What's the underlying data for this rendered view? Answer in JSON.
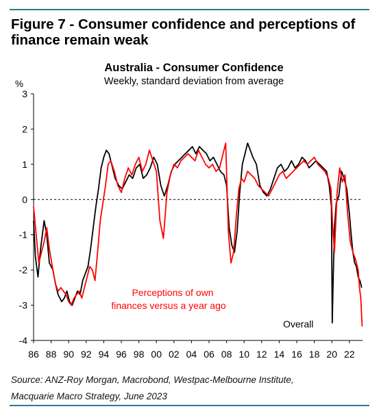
{
  "figure": {
    "title": "Figure 7 - Consumer confidence and perceptions of finance remain weak",
    "source_line1": "Source: ANZ-Roy Morgan, Macrobond, Westpac-Melbourne Institute,",
    "source_line2": "Macquarie Macro Strategy, June 2023"
  },
  "colors": {
    "accent_rule": "#2b7a8c",
    "overall": "#000000",
    "perceptions": "#ff0000"
  },
  "chart_data": {
    "type": "line",
    "title": "Australia - Consumer Confidence",
    "subtitle": "Weekly, standard deviation from average",
    "ylabel": "%",
    "xlabel": "",
    "ylim": [
      -4,
      3
    ],
    "yticks": [
      3,
      2,
      1,
      0,
      -1,
      -2,
      -3,
      -4
    ],
    "xlim": [
      1986,
      2023.5
    ],
    "xticks": [
      "86",
      "88",
      "90",
      "92",
      "94",
      "96",
      "98",
      "00",
      "02",
      "04",
      "06",
      "08",
      "10",
      "12",
      "14",
      "16",
      "18",
      "20",
      "22"
    ],
    "grid": false,
    "zero_line": "dashed",
    "annotations": [
      {
        "text": "Perceptions of own",
        "series": "perceptions"
      },
      {
        "text": "finances versus a year ago",
        "series": "perceptions"
      },
      {
        "text": "Overall",
        "series": "overall"
      }
    ],
    "series": [
      {
        "id": "overall",
        "name": "Overall",
        "color": "#000000",
        "x": [
          1986.0,
          1986.2,
          1986.5,
          1986.8,
          1987.2,
          1987.5,
          1987.8,
          1988.2,
          1988.5,
          1988.8,
          1989.2,
          1989.5,
          1989.8,
          1990.1,
          1990.4,
          1990.7,
          1991.0,
          1991.3,
          1991.6,
          1991.9,
          1992.2,
          1992.5,
          1992.8,
          1993.1,
          1993.4,
          1993.7,
          1994.0,
          1994.3,
          1994.6,
          1994.9,
          1995.3,
          1995.7,
          1996.1,
          1996.5,
          1996.9,
          1997.3,
          1997.7,
          1998.1,
          1998.5,
          1998.9,
          1999.3,
          1999.7,
          2000.1,
          2000.5,
          2000.9,
          2001.3,
          2001.7,
          2002.1,
          2002.5,
          2002.9,
          2003.3,
          2003.7,
          2004.1,
          2004.5,
          2004.9,
          2005.3,
          2005.7,
          2006.1,
          2006.5,
          2006.9,
          2007.3,
          2007.7,
          2008.0,
          2008.3,
          2008.6,
          2008.9,
          2009.2,
          2009.5,
          2009.8,
          2010.1,
          2010.4,
          2010.7,
          2011.0,
          2011.4,
          2011.8,
          2012.2,
          2012.6,
          2013.0,
          2013.4,
          2013.8,
          2014.2,
          2014.6,
          2015.0,
          2015.4,
          2015.8,
          2016.2,
          2016.6,
          2017.0,
          2017.4,
          2017.8,
          2018.2,
          2018.6,
          2019.0,
          2019.4,
          2019.7,
          2019.95,
          2020.05,
          2020.15,
          2020.3,
          2020.5,
          2020.8,
          2021.1,
          2021.4,
          2021.7,
          2022.0,
          2022.2,
          2022.4,
          2022.6,
          2022.8,
          2023.0,
          2023.2,
          2023.4
        ],
        "y": [
          -0.6,
          -1.6,
          -2.2,
          -1.4,
          -0.6,
          -1.0,
          -1.8,
          -2.0,
          -2.4,
          -2.7,
          -2.9,
          -2.8,
          -2.6,
          -2.9,
          -3.0,
          -2.8,
          -2.6,
          -2.7,
          -2.3,
          -2.1,
          -1.9,
          -1.4,
          -0.8,
          -0.2,
          0.3,
          0.9,
          1.2,
          1.4,
          1.3,
          1.0,
          0.6,
          0.4,
          0.3,
          0.5,
          0.7,
          0.6,
          0.9,
          1.0,
          0.6,
          0.7,
          0.9,
          1.2,
          1.0,
          0.4,
          0.1,
          0.4,
          0.8,
          1.0,
          1.1,
          1.2,
          1.3,
          1.4,
          1.5,
          1.3,
          1.5,
          1.4,
          1.3,
          1.1,
          1.2,
          1.0,
          0.8,
          0.7,
          0.4,
          -0.8,
          -1.3,
          -1.5,
          -0.9,
          0.2,
          1.0,
          1.3,
          1.6,
          1.4,
          1.2,
          1.0,
          0.4,
          0.2,
          0.1,
          0.3,
          0.6,
          0.9,
          1.0,
          0.8,
          0.9,
          1.1,
          0.9,
          1.0,
          1.2,
          1.1,
          0.9,
          1.0,
          1.1,
          1.0,
          0.9,
          0.8,
          0.4,
          -0.2,
          -3.5,
          -2.3,
          -0.8,
          -0.1,
          0.1,
          0.8,
          0.6,
          0.3,
          -0.4,
          -1.0,
          -1.5,
          -1.8,
          -1.9,
          -2.2,
          -2.3,
          -2.5
        ]
      },
      {
        "id": "perceptions",
        "name": "Perceptions of own finances versus a year ago",
        "color": "#ff0000",
        "x": [
          1986.0,
          1986.3,
          1986.6,
          1986.9,
          1987.2,
          1987.5,
          1987.8,
          1988.2,
          1988.5,
          1988.8,
          1989.1,
          1989.4,
          1989.7,
          1990.0,
          1990.3,
          1990.6,
          1990.9,
          1991.2,
          1991.5,
          1991.8,
          1992.1,
          1992.4,
          1992.7,
          1993.0,
          1993.3,
          1993.6,
          1993.9,
          1994.2,
          1994.5,
          1994.8,
          1995.2,
          1995.6,
          1996.0,
          1996.4,
          1996.8,
          1997.2,
          1997.6,
          1998.0,
          1998.4,
          1998.8,
          1999.2,
          1999.6,
          2000.0,
          2000.4,
          2000.8,
          2001.2,
          2001.6,
          2002.0,
          2002.4,
          2002.8,
          2003.2,
          2003.6,
          2004.0,
          2004.4,
          2004.8,
          2005.2,
          2005.6,
          2006.0,
          2006.4,
          2006.8,
          2007.2,
          2007.6,
          2007.9,
          2008.2,
          2008.5,
          2008.8,
          2009.1,
          2009.4,
          2009.7,
          2010.0,
          2010.4,
          2010.8,
          2011.2,
          2011.6,
          2012.0,
          2012.4,
          2012.8,
          2013.2,
          2013.6,
          2014.0,
          2014.4,
          2014.8,
          2015.2,
          2015.6,
          2016.0,
          2016.4,
          2016.8,
          2017.2,
          2017.6,
          2018.0,
          2018.4,
          2018.8,
          2019.2,
          2019.6,
          2019.9,
          2020.1,
          2020.3,
          2020.6,
          2020.9,
          2021.2,
          2021.5,
          2021.8,
          2022.1,
          2022.4,
          2022.7,
          2023.0,
          2023.15,
          2023.3,
          2023.45
        ],
        "y": [
          -0.2,
          -1.0,
          -1.8,
          -1.5,
          -1.2,
          -0.8,
          -1.4,
          -2.0,
          -2.4,
          -2.6,
          -2.5,
          -2.6,
          -2.7,
          -2.9,
          -3.0,
          -2.8,
          -2.7,
          -2.6,
          -2.8,
          -2.5,
          -2.2,
          -1.9,
          -2.0,
          -2.3,
          -1.5,
          -0.6,
          -0.1,
          0.4,
          1.0,
          1.1,
          0.8,
          0.4,
          0.2,
          0.6,
          0.9,
          0.7,
          1.0,
          1.2,
          0.8,
          1.0,
          1.4,
          1.1,
          0.8,
          -0.6,
          -1.1,
          0.2,
          0.7,
          1.0,
          0.9,
          1.1,
          1.2,
          1.3,
          1.2,
          1.1,
          1.4,
          1.2,
          1.0,
          0.9,
          1.0,
          0.8,
          0.9,
          1.3,
          1.6,
          -0.9,
          -1.8,
          -1.5,
          -0.5,
          0.3,
          0.6,
          0.5,
          0.8,
          0.7,
          0.6,
          0.4,
          0.3,
          0.2,
          0.1,
          0.3,
          0.5,
          0.7,
          0.8,
          0.6,
          0.7,
          0.8,
          0.9,
          1.0,
          1.1,
          1.0,
          1.1,
          1.2,
          1.0,
          0.9,
          0.8,
          0.6,
          0.3,
          -0.8,
          -1.5,
          0.2,
          0.9,
          0.5,
          0.7,
          -0.4,
          -1.2,
          -1.5,
          -1.7,
          -2.0,
          -2.5,
          -2.8,
          -3.6
        ]
      }
    ]
  }
}
